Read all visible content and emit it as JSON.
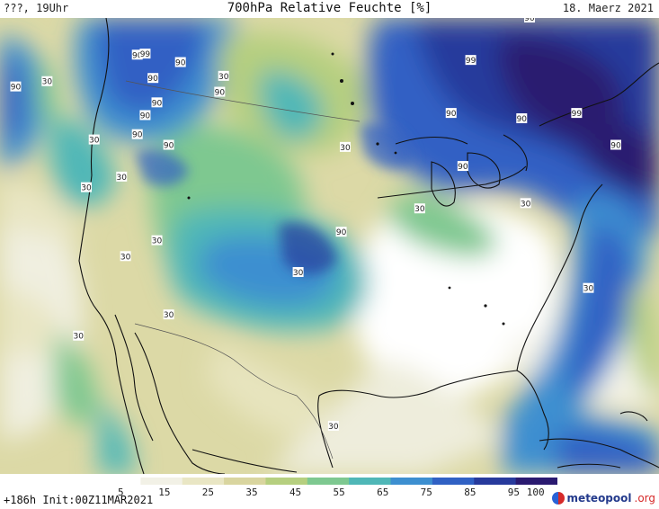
{
  "header": {
    "left": "???, 19Uhr",
    "title": "700hPa Relative Feuchte [%]",
    "date": "18. Maerz 2021"
  },
  "map": {
    "contour_labels": [
      {
        "text": "90",
        "lon": -124.5,
        "lat": 53.5
      },
      {
        "text": "99",
        "lon": -123.5,
        "lat": 53.6
      },
      {
        "text": "90",
        "lon": -119.0,
        "lat": 52.8
      },
      {
        "text": "90",
        "lon": -140.0,
        "lat": 50.5
      },
      {
        "text": "30",
        "lon": -136.0,
        "lat": 51.0
      },
      {
        "text": "30",
        "lon": -113.5,
        "lat": 51.5
      },
      {
        "text": "90",
        "lon": -122.5,
        "lat": 51.3
      },
      {
        "text": "90",
        "lon": -114.0,
        "lat": 50.0
      },
      {
        "text": "90",
        "lon": -122.0,
        "lat": 49.0
      },
      {
        "text": "90",
        "lon": -123.5,
        "lat": 47.8
      },
      {
        "text": "30",
        "lon": -130.0,
        "lat": 45.5
      },
      {
        "text": "90",
        "lon": -124.5,
        "lat": 46.0
      },
      {
        "text": "90",
        "lon": -120.5,
        "lat": 45.0
      },
      {
        "text": "30",
        "lon": -131.0,
        "lat": 41.0
      },
      {
        "text": "30",
        "lon": -126.5,
        "lat": 42.0
      },
      {
        "text": "30",
        "lon": -98.0,
        "lat": 44.8
      },
      {
        "text": "30",
        "lon": -122.0,
        "lat": 36.0
      },
      {
        "text": "30",
        "lon": -126.0,
        "lat": 34.5
      },
      {
        "text": "90",
        "lon": -98.5,
        "lat": 36.8
      },
      {
        "text": "30",
        "lon": -104.0,
        "lat": 33.0
      },
      {
        "text": "30",
        "lon": -120.5,
        "lat": 29.0
      },
      {
        "text": "30",
        "lon": -132.0,
        "lat": 27.0
      },
      {
        "text": "30",
        "lon": -99.5,
        "lat": 18.5
      },
      {
        "text": "99",
        "lon": -82.0,
        "lat": 53.0
      },
      {
        "text": "90",
        "lon": -74.5,
        "lat": 57.0
      },
      {
        "text": "90",
        "lon": -84.5,
        "lat": 48.0
      },
      {
        "text": "99",
        "lon": -68.5,
        "lat": 48.0
      },
      {
        "text": "90",
        "lon": -75.5,
        "lat": 47.5
      },
      {
        "text": "90",
        "lon": -63.5,
        "lat": 45.0
      },
      {
        "text": "90",
        "lon": -83.0,
        "lat": 43.0
      },
      {
        "text": "30",
        "lon": -75.0,
        "lat": 39.5
      },
      {
        "text": "30",
        "lon": -88.5,
        "lat": 39.0
      },
      {
        "text": "30",
        "lon": -67.0,
        "lat": 31.5
      }
    ]
  },
  "legend": {
    "ticks": [
      {
        "label": "5",
        "value": 5
      },
      {
        "label": "15",
        "value": 15
      },
      {
        "label": "25",
        "value": 25
      },
      {
        "label": "35",
        "value": 35
      },
      {
        "label": "45",
        "value": 45
      },
      {
        "label": "55",
        "value": 55
      },
      {
        "label": "65",
        "value": 65
      },
      {
        "label": "75",
        "value": 75
      },
      {
        "label": "85",
        "value": 85
      },
      {
        "label": "95",
        "value": 95
      },
      {
        "label": "100",
        "value": 100
      }
    ],
    "colors": [
      "#ffffff",
      "#f2f1e6",
      "#e9e6c4",
      "#d9d59f",
      "#b6cf7f",
      "#7ec890",
      "#4fb7b7",
      "#3d8fd0",
      "#3061c4",
      "#273a9c",
      "#2a1a70"
    ]
  },
  "footer": {
    "run": "+186h  Init:00Z11MAR2021",
    "brand": "meteopool",
    "brand_suffix": ".org"
  }
}
